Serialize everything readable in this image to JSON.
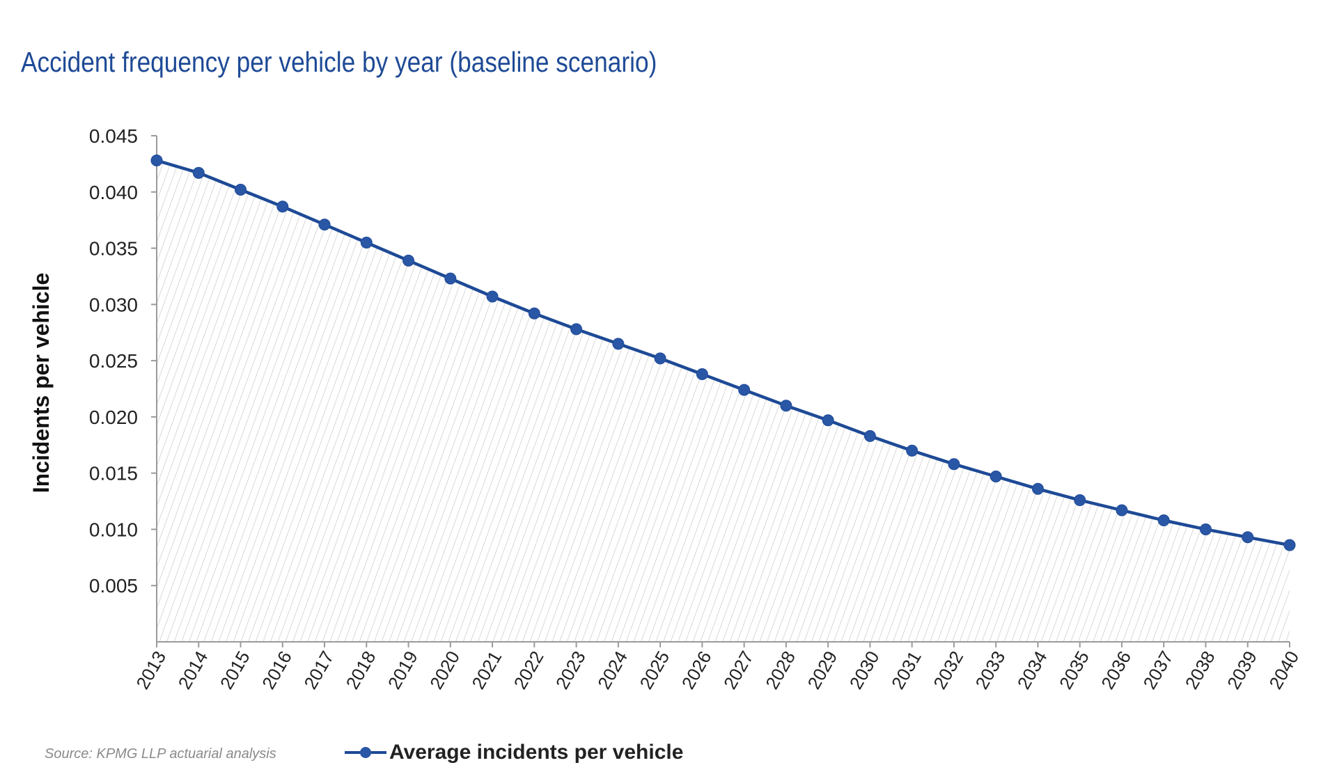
{
  "chart_data": {
    "type": "area",
    "title": "Accident frequency per vehicle by year (baseline scenario)",
    "ylabel": "Incidents per vehicle",
    "xlabel": "",
    "ylim": [
      0,
      0.045
    ],
    "yticks": [
      "0.045",
      "0.040",
      "0.035",
      "0.030",
      "0.025",
      "0.020",
      "0.015",
      "0.010",
      "0.005"
    ],
    "categories": [
      "2013",
      "2014",
      "2015",
      "2016",
      "2017",
      "2018",
      "2019",
      "2020",
      "2021",
      "2022",
      "2023",
      "2024",
      "2025",
      "2026",
      "2027",
      "2028",
      "2029",
      "2030",
      "2031",
      "2032",
      "2033",
      "2034",
      "2035",
      "2036",
      "2037",
      "2038",
      "2039",
      "2040"
    ],
    "series": [
      {
        "name": "Average incidents per vehicle",
        "values": [
          0.0428,
          0.0417,
          0.0402,
          0.0387,
          0.0371,
          0.0355,
          0.0339,
          0.0323,
          0.0307,
          0.0292,
          0.0278,
          0.0265,
          0.0252,
          0.0238,
          0.0224,
          0.021,
          0.0197,
          0.0183,
          0.017,
          0.0158,
          0.0147,
          0.0136,
          0.0126,
          0.0117,
          0.0108,
          0.01,
          0.0093,
          0.0086
        ],
        "color": "#1e4a96"
      }
    ],
    "legend_position": "bottom",
    "area_fill": "diagonal-hatch",
    "grid": false,
    "source": "Source: KPMG LLP actuarial analysis"
  }
}
